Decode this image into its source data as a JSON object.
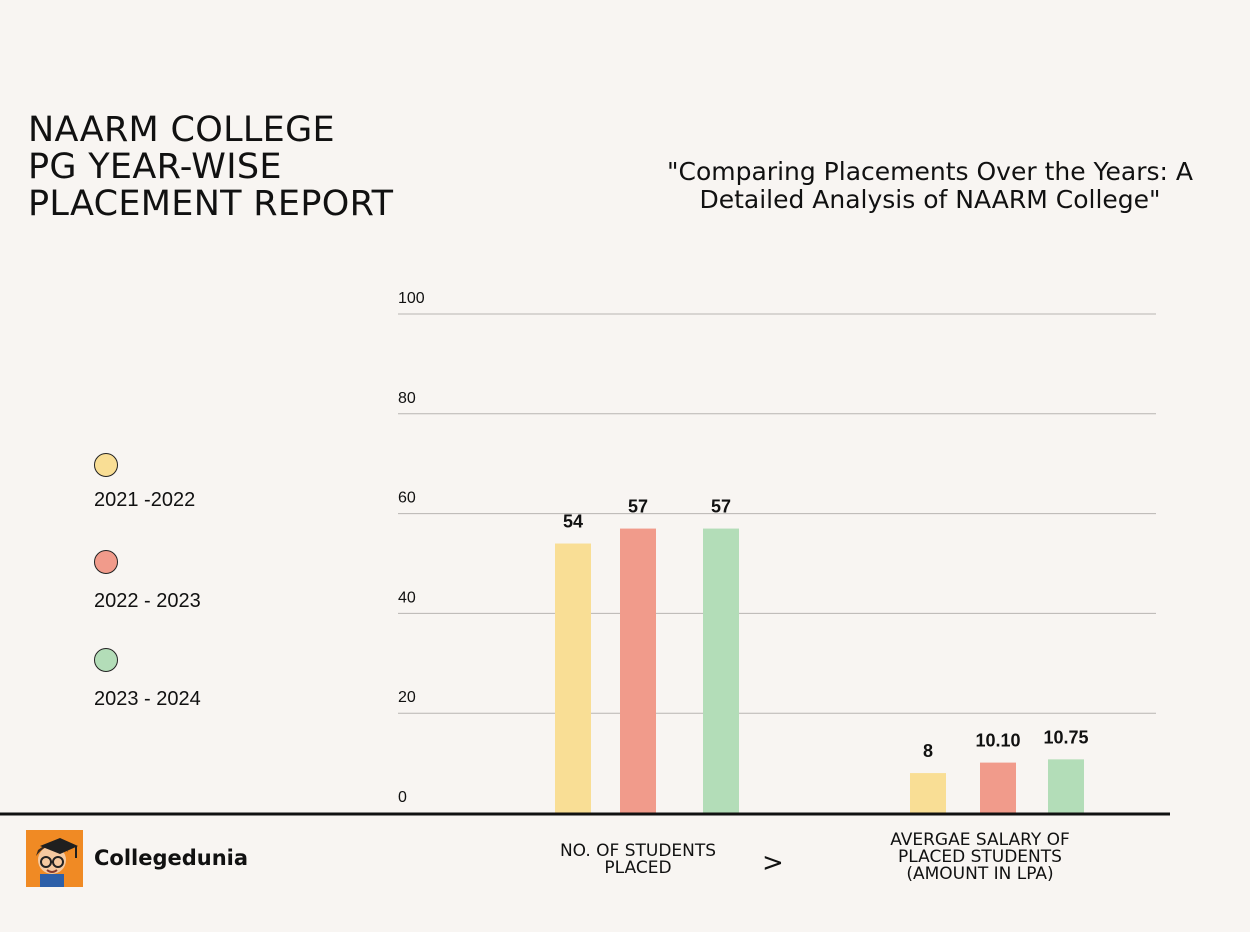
{
  "title_lines": [
    "NAARM COLLEGE",
    "PG YEAR-WISE",
    "PLACEMENT REPORT"
  ],
  "subtitle_lines": [
    "\"Comparing Placements Over the Years: A",
    "Detailed Analysis of NAARM College\""
  ],
  "legend": [
    {
      "label": "2021 -2022",
      "color": "#f9de95"
    },
    {
      "label": "2022 - 2023",
      "color": "#f19b8b"
    },
    {
      "label": "2023 - 2024",
      "color": "#b3ddb8"
    }
  ],
  "brand": {
    "name": "Collegedunia",
    "logo_icon": "student-mascot-icon"
  },
  "chevron": ">",
  "chart_data": {
    "type": "bar",
    "title": "NAARM COLLEGE PG YEAR-WISE PLACEMENT REPORT",
    "categories": [
      "NO. OF STUDENTS PLACED",
      "AVERGAE SALARY OF PLACED STUDENTS (AMOUNT IN LPA)"
    ],
    "category_lines": [
      [
        "NO. OF STUDENTS",
        "PLACED"
      ],
      [
        "AVERGAE SALARY OF",
        "PLACED STUDENTS",
        "(AMOUNT IN LPA)"
      ]
    ],
    "series": [
      {
        "name": "2021 -2022",
        "color": "#f9de95",
        "values": [
          54,
          8
        ],
        "labels": [
          "54",
          "8"
        ]
      },
      {
        "name": "2022 - 2023",
        "color": "#f19b8b",
        "values": [
          57,
          10.1
        ],
        "labels": [
          "57",
          "10.10"
        ]
      },
      {
        "name": "2023 - 2024",
        "color": "#b3ddb8",
        "values": [
          57,
          10.75
        ],
        "labels": [
          "57",
          "10.75"
        ]
      }
    ],
    "ylim": [
      0,
      100
    ],
    "yticks": [
      0,
      20,
      40,
      60,
      80,
      100
    ],
    "grid": true
  }
}
